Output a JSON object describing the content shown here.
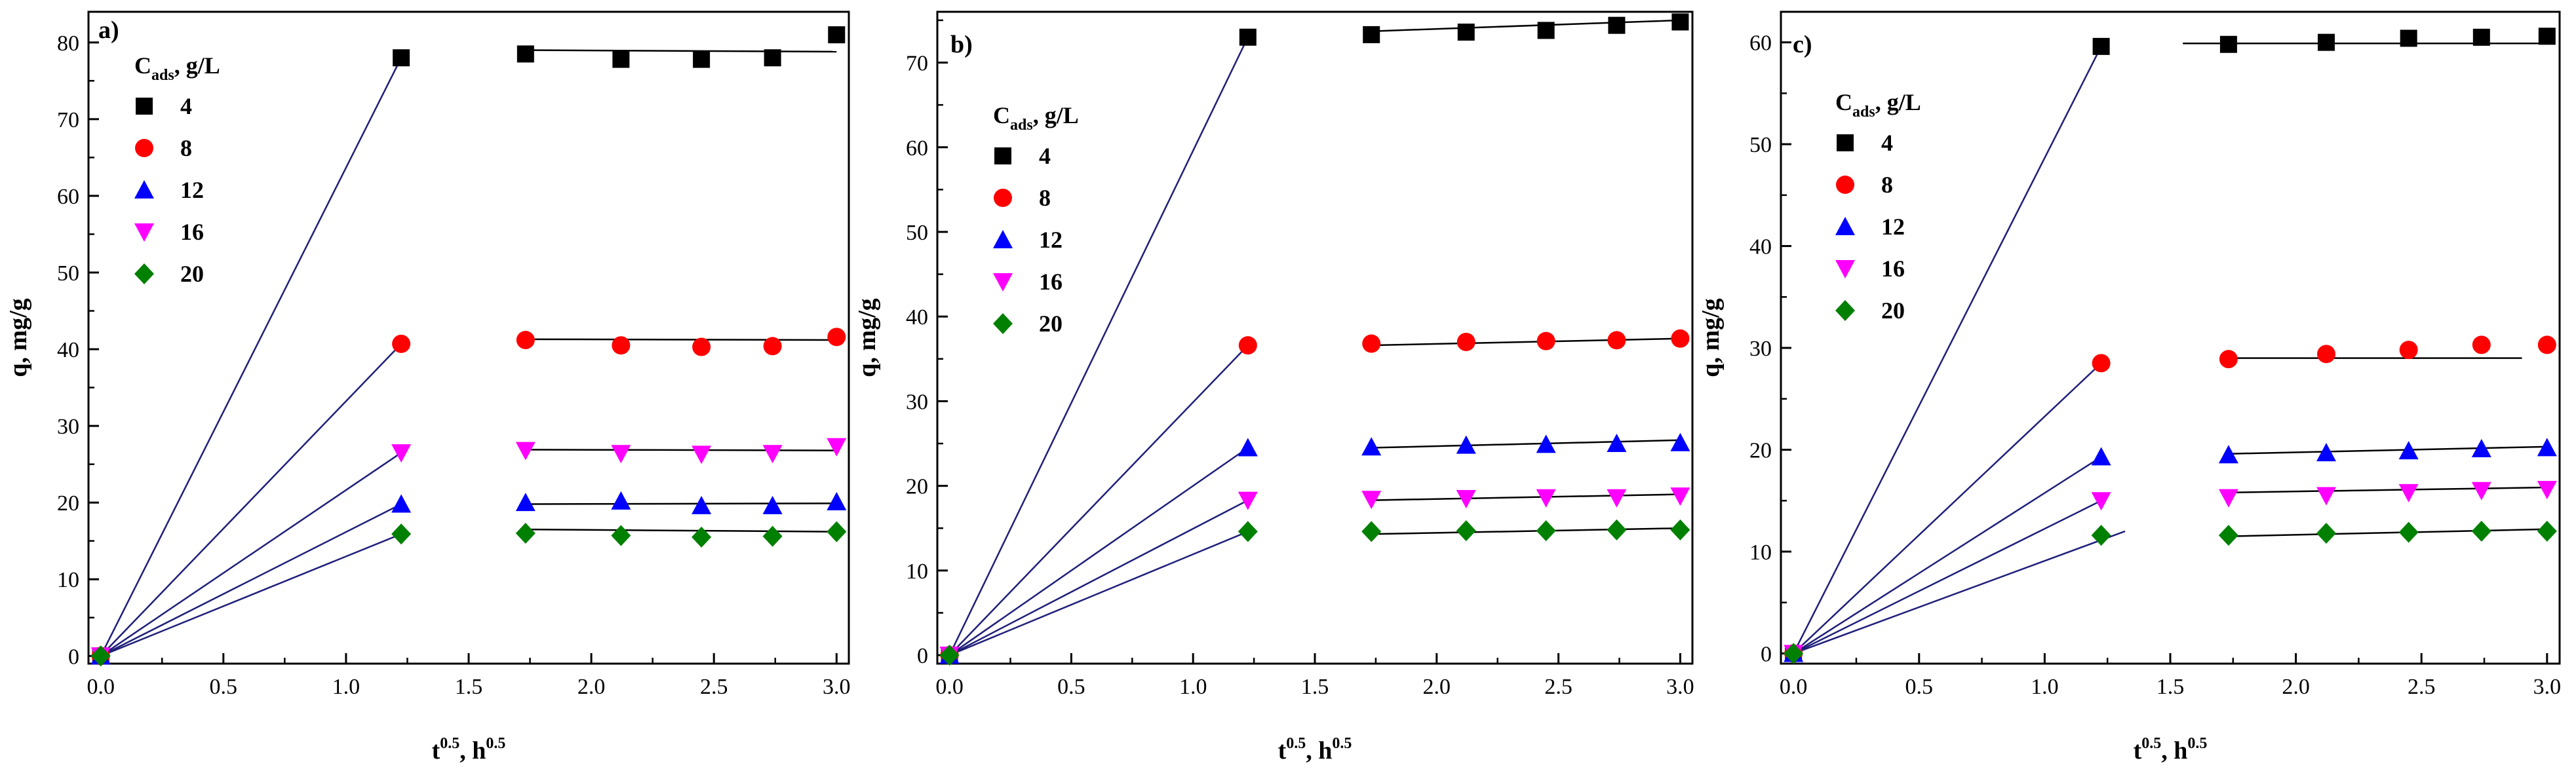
{
  "chart_data": [
    {
      "type": "scatter",
      "panel": "a)",
      "xlabel": "t0.5, h0.5",
      "xlabel_main": "t",
      "xlabel_sup1": "0.5",
      "xlabel_sep": ", h",
      "xlabel_sup2": "0.5",
      "ylabel": "q, mg/g",
      "xlim": [
        -0.05,
        3.05
      ],
      "ylim": [
        -1,
        84
      ],
      "xticks": [
        0.0,
        0.5,
        1.0,
        1.5,
        2.0,
        2.5,
        3.0
      ],
      "xtick_labels": [
        "0.0",
        "0.5",
        "1.0",
        "1.5",
        "2.0",
        "2.5",
        "3.0"
      ],
      "yticks": [
        0,
        10,
        20,
        30,
        40,
        50,
        60,
        70,
        80
      ],
      "ytick_labels": [
        "0",
        "10",
        "20",
        "30",
        "40",
        "50",
        "60",
        "70",
        "80"
      ],
      "legend_title_main": "C",
      "legend_title_sub": "ads",
      "legend_title_rest": ", g/L",
      "legend_position": "top-left",
      "x": [
        0,
        1.225,
        1.732,
        2.121,
        2.449,
        2.739,
        3.0
      ],
      "series": [
        {
          "name": "4",
          "marker": "square",
          "color": "#000000",
          "values": [
            0,
            78.0,
            78.5,
            77.8,
            77.8,
            78.0,
            81.0
          ],
          "fit1": [
            [
              0,
              0
            ],
            [
              1.225,
              78.0
            ]
          ],
          "fit2": [
            [
              1.732,
              79.0
            ],
            [
              3.0,
              78.8
            ]
          ]
        },
        {
          "name": "8",
          "marker": "circle",
          "color": "#ff0000",
          "values": [
            0,
            40.7,
            41.2,
            40.5,
            40.3,
            40.4,
            41.6
          ],
          "fit1": [
            [
              0,
              0
            ],
            [
              1.225,
              40.7
            ]
          ],
          "fit2": [
            [
              1.732,
              41.3
            ],
            [
              3.0,
              41.2
            ]
          ]
        },
        {
          "name": "12",
          "marker": "triangle-up",
          "color": "#0000ff",
          "values": [
            0,
            19.8,
            20.0,
            20.2,
            19.6,
            19.6,
            20.1
          ],
          "fit1": [
            [
              0,
              0
            ],
            [
              1.225,
              19.8
            ]
          ],
          "fit2": [
            [
              1.732,
              19.8
            ],
            [
              3.0,
              19.9
            ]
          ]
        },
        {
          "name": "16",
          "marker": "triangle-down",
          "color": "#ff00ff",
          "values": [
            0,
            26.5,
            26.8,
            26.4,
            26.3,
            26.4,
            27.3
          ],
          "fit1": [
            [
              0,
              0
            ],
            [
              1.225,
              26.5
            ]
          ],
          "fit2": [
            [
              1.732,
              26.9
            ],
            [
              3.0,
              26.8
            ]
          ]
        },
        {
          "name": "20",
          "marker": "diamond",
          "color": "#008000",
          "values": [
            0,
            15.9,
            16.0,
            15.7,
            15.5,
            15.6,
            16.2
          ],
          "fit1": [
            [
              0,
              0
            ],
            [
              1.225,
              15.9
            ]
          ],
          "fit2": [
            [
              1.732,
              16.5
            ],
            [
              3.0,
              16.2
            ]
          ]
        }
      ]
    },
    {
      "type": "scatter",
      "panel": "b)",
      "xlabel": "t0.5, h0.5",
      "xlabel_main": "t",
      "xlabel_sup1": "0.5",
      "xlabel_sep": ", h",
      "xlabel_sup2": "0.5",
      "ylabel": "q, mg/g",
      "xlim": [
        -0.05,
        3.05
      ],
      "ylim": [
        -1,
        76
      ],
      "xticks": [
        0.0,
        0.5,
        1.0,
        1.5,
        2.0,
        2.5,
        3.0
      ],
      "xtick_labels": [
        "0.0",
        "0.5",
        "1.0",
        "1.5",
        "2.0",
        "2.5",
        "3.0"
      ],
      "yticks": [
        0,
        10,
        20,
        30,
        40,
        50,
        60,
        70
      ],
      "ytick_labels": [
        "0",
        "10",
        "20",
        "30",
        "40",
        "50",
        "60",
        "70"
      ],
      "legend_title_main": "C",
      "legend_title_sub": "ads",
      "legend_title_rest": ", g/L",
      "legend_position": "upper-left",
      "x": [
        0,
        1.225,
        1.732,
        2.121,
        2.449,
        2.739,
        3.0
      ],
      "series": [
        {
          "name": "4",
          "marker": "square",
          "color": "#000000",
          "values": [
            0,
            73.0,
            73.3,
            73.6,
            73.8,
            74.4,
            74.8
          ],
          "fit1": [
            [
              0,
              0
            ],
            [
              1.225,
              73.0
            ]
          ],
          "fit2": [
            [
              1.732,
              73.7
            ],
            [
              3.0,
              75.0
            ]
          ]
        },
        {
          "name": "8",
          "marker": "circle",
          "color": "#ff0000",
          "values": [
            0,
            36.6,
            36.8,
            37.0,
            37.1,
            37.2,
            37.4
          ],
          "fit1": [
            [
              0,
              0
            ],
            [
              1.225,
              36.6
            ]
          ],
          "fit2": [
            [
              1.732,
              36.6
            ],
            [
              3.0,
              37.4
            ]
          ]
        },
        {
          "name": "12",
          "marker": "triangle-up",
          "color": "#0000ff",
          "values": [
            0,
            24.5,
            24.6,
            24.8,
            24.9,
            25.0,
            25.1
          ],
          "fit1": [
            [
              0,
              0
            ],
            [
              1.225,
              24.5
            ]
          ],
          "fit2": [
            [
              1.732,
              24.5
            ],
            [
              3.0,
              25.4
            ]
          ]
        },
        {
          "name": "16",
          "marker": "triangle-down",
          "color": "#ff00ff",
          "values": [
            0,
            18.3,
            18.4,
            18.5,
            18.6,
            18.6,
            18.8
          ],
          "fit1": [
            [
              0,
              0
            ],
            [
              1.225,
              18.3
            ]
          ],
          "fit2": [
            [
              1.732,
              18.3
            ],
            [
              3.0,
              19.0
            ]
          ]
        },
        {
          "name": "20",
          "marker": "diamond",
          "color": "#008000",
          "values": [
            0,
            14.6,
            14.6,
            14.7,
            14.7,
            14.8,
            14.8
          ],
          "fit1": [
            [
              0,
              0
            ],
            [
              1.225,
              14.6
            ]
          ],
          "fit2": [
            [
              1.732,
              14.3
            ],
            [
              3.0,
              15.0
            ]
          ]
        }
      ]
    },
    {
      "type": "scatter",
      "panel": "c)",
      "xlabel": "t0.5, h0.5",
      "xlabel_main": "t",
      "xlabel_sup1": "0.5",
      "xlabel_sep": ", h",
      "xlabel_sup2": "0.5",
      "ylabel": "q, mg/g",
      "xlim": [
        -0.05,
        3.05
      ],
      "ylim": [
        -1,
        63
      ],
      "xticks": [
        0.0,
        0.5,
        1.0,
        1.5,
        2.0,
        2.5,
        3.0
      ],
      "xtick_labels": [
        "0.0",
        "0.5",
        "1.0",
        "1.5",
        "2.0",
        "2.5",
        "3.0"
      ],
      "yticks": [
        0,
        10,
        20,
        30,
        40,
        50,
        60
      ],
      "ytick_labels": [
        "0",
        "10",
        "20",
        "30",
        "40",
        "50",
        "60"
      ],
      "legend_title_main": "C",
      "legend_title_sub": "ads",
      "legend_title_rest": ", g/L",
      "legend_position": "upper-left",
      "x": [
        0,
        1.225,
        1.732,
        2.121,
        2.449,
        2.739,
        3.0
      ],
      "series": [
        {
          "name": "4",
          "marker": "square",
          "color": "#000000",
          "values": [
            0,
            59.6,
            59.8,
            60.0,
            60.4,
            60.5,
            60.6
          ],
          "fit1": [
            [
              0,
              0
            ],
            [
              1.225,
              59.6
            ]
          ],
          "fit2": [
            [
              1.55,
              59.9
            ],
            [
              3.0,
              59.9
            ]
          ]
        },
        {
          "name": "8",
          "marker": "circle",
          "color": "#ff0000",
          "values": [
            0,
            28.5,
            28.9,
            29.4,
            29.8,
            30.3,
            30.3
          ],
          "fit1": [
            [
              0,
              0
            ],
            [
              1.225,
              28.5
            ]
          ],
          "fit2": [
            [
              1.732,
              29.0
            ],
            [
              2.9,
              29.0
            ]
          ]
        },
        {
          "name": "12",
          "marker": "triangle-up",
          "color": "#0000ff",
          "values": [
            0,
            19.3,
            19.5,
            19.7,
            19.9,
            20.1,
            20.2
          ],
          "fit1": [
            [
              0,
              0
            ],
            [
              1.225,
              19.3
            ]
          ],
          "fit2": [
            [
              1.732,
              19.6
            ],
            [
              3.0,
              20.3
            ]
          ]
        },
        {
          "name": "16",
          "marker": "triangle-down",
          "color": "#ff00ff",
          "values": [
            0,
            15.0,
            15.3,
            15.5,
            15.8,
            16.0,
            16.1
          ],
          "fit1": [
            [
              0,
              0
            ],
            [
              1.225,
              15.0
            ]
          ],
          "fit2": [
            [
              1.732,
              15.8
            ],
            [
              3.0,
              16.3
            ]
          ]
        },
        {
          "name": "20",
          "marker": "diamond",
          "color": "#008000",
          "values": [
            0,
            11.6,
            11.6,
            11.8,
            11.9,
            12.0,
            12.0
          ],
          "fit1": [
            [
              0,
              0
            ],
            [
              1.32,
              12.0
            ]
          ],
          "fit2": [
            [
              1.732,
              11.5
            ],
            [
              3.0,
              12.2
            ]
          ]
        }
      ]
    }
  ]
}
